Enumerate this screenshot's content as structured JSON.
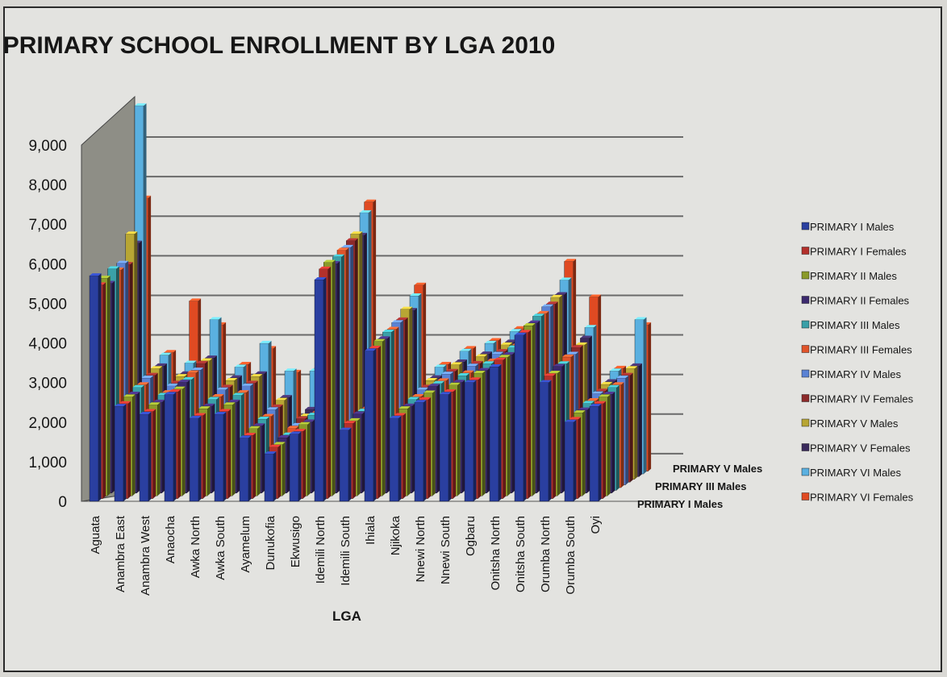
{
  "chart_data": {
    "type": "bar",
    "title": "PRIMARY SCHOOL ENROLLMENT BY LGA 2010",
    "xlabel": "LGA",
    "ylabel": "",
    "ylim": [
      0,
      9000
    ],
    "yticks": [
      "0",
      "1,000",
      "2,000",
      "3,000",
      "4,000",
      "5,000",
      "6,000",
      "7,000",
      "8,000",
      "9,000"
    ],
    "grid": true,
    "legend_position": "right",
    "depth_axis_labels": [
      "PRIMARY I Males",
      "PRIMARY III Males",
      "PRIMARY V Males"
    ],
    "categories": [
      "Aguata",
      "Anambra East",
      "Anambra West",
      "Anaocha",
      "Awka North",
      "Awka South",
      "Ayamelum",
      "Dunukofia",
      "Ekwusigo",
      "Idemili North",
      "Idemili South",
      "Ihiala",
      "Njikoka",
      "Nnewi North",
      "Nnewi South",
      "Ogbaru",
      "Onitsha North",
      "Onitsha South",
      "Orumba North",
      "Orumba South",
      "Oyi"
    ],
    "series": [
      {
        "name": "PRIMARY I Males",
        "color": "#2a3fa0",
        "values": [
          5700,
          2400,
          2200,
          2700,
          2100,
          2200,
          1600,
          1200,
          1700,
          5600,
          1800,
          3800,
          2100,
          2500,
          2700,
          3000,
          3400,
          4200,
          3000,
          2000,
          2400
        ]
      },
      {
        "name": "PRIMARY I Females",
        "color": "#b3302b",
        "values": [
          5400,
          2400,
          2200,
          2700,
          2100,
          2200,
          1600,
          1300,
          1700,
          5800,
          1900,
          3800,
          2100,
          2500,
          2700,
          3000,
          3500,
          4200,
          3100,
          2000,
          2400
        ]
      },
      {
        "name": "PRIMARY II Males",
        "color": "#8a9a2a",
        "values": [
          5500,
          2500,
          2300,
          2700,
          2200,
          2300,
          1700,
          1300,
          1800,
          5900,
          1900,
          3900,
          2200,
          2600,
          2800,
          3100,
          3500,
          4300,
          3100,
          2100,
          2500
        ]
      },
      {
        "name": "PRIMARY II Females",
        "color": "#3c2a6e",
        "values": [
          5300,
          2500,
          2300,
          2800,
          2200,
          2300,
          1700,
          1400,
          1800,
          5800,
          2000,
          3900,
          2200,
          2700,
          2800,
          3100,
          3500,
          4300,
          3200,
          2100,
          2500
        ]
      },
      {
        "name": "PRIMARY III Males",
        "color": "#3aa0a8",
        "values": [
          5600,
          2600,
          2400,
          2800,
          2300,
          2400,
          1800,
          1400,
          1900,
          5900,
          2000,
          4000,
          2300,
          2700,
          2900,
          3200,
          3600,
          4400,
          3200,
          2200,
          2600
        ]
      },
      {
        "name": "PRIMARY III Females",
        "color": "#e0542a",
        "values": [
          5500,
          2600,
          2400,
          2900,
          2300,
          2400,
          1800,
          1500,
          1900,
          6000,
          2000,
          4000,
          2300,
          2700,
          2900,
          3200,
          3600,
          4400,
          3300,
          2200,
          2600
        ]
      },
      {
        "name": "PRIMARY IV Males",
        "color": "#5a82d4",
        "values": [
          5600,
          2700,
          2500,
          2900,
          2400,
          2500,
          1900,
          1500,
          2000,
          6000,
          2100,
          4100,
          2400,
          2800,
          3000,
          3300,
          3700,
          4500,
          3300,
          2300,
          2700
        ]
      },
      {
        "name": "PRIMARY IV Females",
        "color": "#8c2a2a",
        "values": [
          5500,
          2700,
          2500,
          3000,
          2400,
          2500,
          1900,
          1600,
          2000,
          6100,
          2100,
          4100,
          2400,
          2800,
          3000,
          3300,
          3700,
          4500,
          3400,
          2300,
          2700
        ]
      },
      {
        "name": "PRIMARY V Males",
        "color": "#b8a634",
        "values": [
          6200,
          2800,
          2600,
          3000,
          2500,
          2600,
          2000,
          1600,
          2100,
          6200,
          2200,
          4300,
          2500,
          2900,
          3100,
          3400,
          3800,
          4600,
          3400,
          2400,
          2800
        ]
      },
      {
        "name": "PRIMARY V Females",
        "color": "#3a2a5c",
        "values": [
          5900,
          2800,
          2600,
          3000,
          2500,
          2600,
          2000,
          1700,
          2100,
          6100,
          2200,
          4200,
          2500,
          2900,
          3100,
          3400,
          3800,
          4600,
          3500,
          2400,
          2800
        ]
      },
      {
        "name": "PRIMARY VI Males",
        "color": "#5ab0e0",
        "values": [
          9300,
          3000,
          2800,
          3900,
          2700,
          3300,
          2600,
          2600,
          2300,
          6600,
          2400,
          4500,
          2700,
          3100,
          3300,
          3600,
          4000,
          4900,
          3700,
          2600,
          3900
        ]
      },
      {
        "name": "PRIMARY VI Females",
        "color": "#e04a22",
        "values": [
          6900,
          3000,
          4300,
          3700,
          2700,
          3100,
          2500,
          2600,
          2300,
          6800,
          2400,
          4700,
          2700,
          3100,
          3300,
          3600,
          4000,
          5300,
          4400,
          2600,
          3700
        ]
      }
    ]
  }
}
